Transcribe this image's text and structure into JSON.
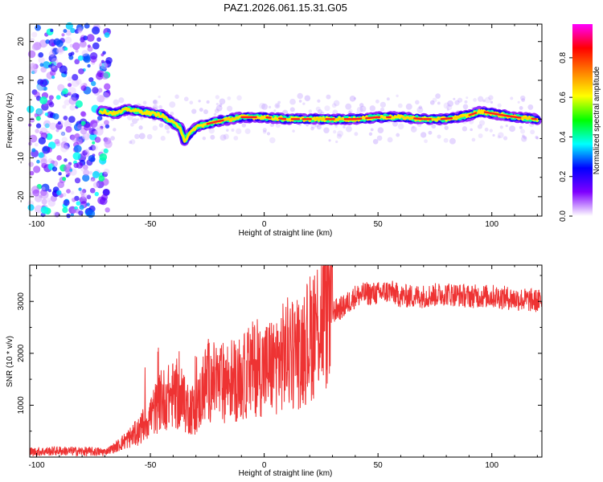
{
  "figure": {
    "title": "PAZ1.2026.061.15.31.G05"
  },
  "chart_data": [
    {
      "type": "heatmap",
      "title": "PAZ1.2026.061.15.31.G05",
      "xlabel": "Height of straight line (km)",
      "ylabel": "Frequency (Hz)",
      "xlim": [
        -103,
        122
      ],
      "ylim": [
        -25,
        24.5
      ],
      "xticks": [
        -100,
        -50,
        0,
        50,
        100
      ],
      "yticks": [
        -20,
        -10,
        0,
        10,
        20
      ],
      "colorbar": {
        "label": "Normalized spectral amplitude",
        "range": [
          0,
          0.97
        ],
        "ticks": [
          0.0,
          0.2,
          0.4,
          0.6,
          0.8
        ],
        "colormap": [
          "#ffffff",
          "#7f00ff",
          "#0000ff",
          "#00ffff",
          "#00ff00",
          "#ffff00",
          "#ff8000",
          "#ff0000",
          "#ff00ff"
        ]
      },
      "ridge": {
        "x": [
          -72,
          -65,
          -60,
          -55,
          -50,
          -45,
          -40,
          -37,
          -35,
          -30,
          -20,
          -10,
          0,
          10,
          20,
          30,
          40,
          50,
          60,
          70,
          80,
          90,
          95,
          100,
          110,
          120
        ],
        "y": [
          2,
          1.5,
          2.5,
          2,
          1.5,
          1,
          -1,
          -2,
          -5.5,
          -2,
          -0.5,
          0.5,
          0.5,
          0,
          0,
          0,
          0,
          0.5,
          0.5,
          0,
          0,
          1,
          2,
          1.5,
          0.5,
          0
        ]
      },
      "noise_region": {
        "x_from": -103,
        "x_to": -70
      }
    },
    {
      "type": "line",
      "title": "",
      "xlabel": "Height of straight line (km)",
      "ylabel": "SNR (10 * v/v)",
      "xlim": [
        -103,
        122
      ],
      "ylim": [
        0,
        3700
      ],
      "xticks": [
        -100,
        -50,
        0,
        50,
        100
      ],
      "yticks": [
        1000,
        2000,
        3000
      ],
      "series": [
        {
          "name": "SNR",
          "color": "#ee3333",
          "x": [
            -103,
            -90,
            -80,
            -70,
            -65,
            -60,
            -55,
            -50,
            -45,
            -40,
            -35,
            -30,
            -25,
            -20,
            -15,
            -10,
            -5,
            0,
            5,
            10,
            15,
            20,
            25,
            30,
            35,
            40,
            45,
            50,
            55,
            60,
            70,
            80,
            90,
            100,
            110,
            122
          ],
          "y": [
            100,
            120,
            110,
            100,
            200,
            350,
            500,
            800,
            1100,
            1200,
            1000,
            900,
            1500,
            1400,
            1500,
            1500,
            1700,
            1700,
            1800,
            2000,
            2000,
            2300,
            2700,
            2800,
            2900,
            3100,
            3150,
            3150,
            3200,
            3100,
            3100,
            3150,
            3100,
            3100,
            3050,
            3000
          ]
        }
      ]
    }
  ]
}
